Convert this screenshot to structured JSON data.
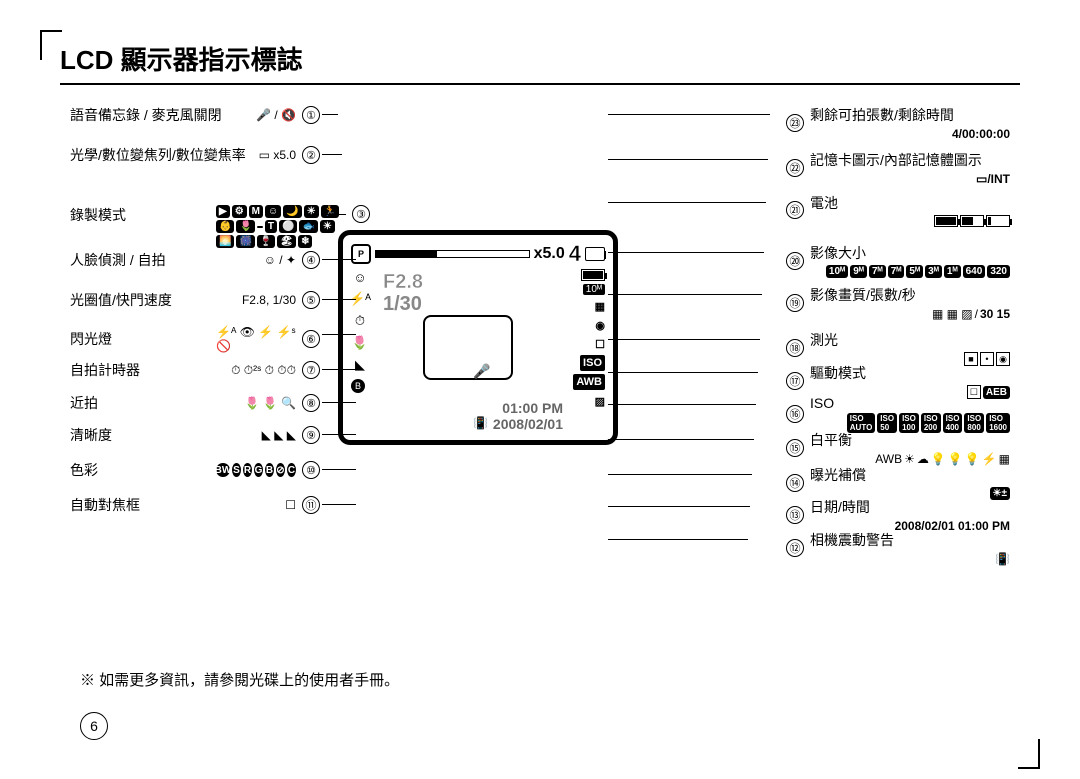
{
  "title": "LCD 顯示器指示標誌",
  "footnote": "※ 如需更多資訊，請參閱光碟上的使用者手冊。",
  "page_number": "6",
  "lcd": {
    "zoom": "x5.0",
    "count": "4",
    "aperture": "F2.8",
    "shutter": "1/30",
    "time": "01:00 PM",
    "date": "2008/02/01",
    "iso": "ISO",
    "awb": "AWB",
    "size": "10ᴹ"
  },
  "left": [
    {
      "n": "①",
      "label": "語音備忘錄 / 麥克風關閉",
      "icons": "🎤 / 🔇"
    },
    {
      "n": "②",
      "label": "光學/數位變焦列/數位變焦率",
      "icons": "▭ x5.0"
    },
    {
      "n": "③",
      "label": "錄製模式",
      "icons": "row_modes"
    },
    {
      "n": "④",
      "label": "人臉偵測 / 自拍",
      "icons": "☺ / ✦"
    },
    {
      "n": "⑤",
      "label": "光圈值/快門速度",
      "icons": "F2.8, 1/30"
    },
    {
      "n": "⑥",
      "label": "閃光燈",
      "icons": "⚡ᴬ 👁 ⚡ ⚡ˢ 🚫"
    },
    {
      "n": "⑦",
      "label": "自拍計時器",
      "icons": "⏱ ⏱²ˢ ⏱ ⏱⏱"
    },
    {
      "n": "⑧",
      "label": "近拍",
      "icons": "🌷 🌷 🔍"
    },
    {
      "n": "⑨",
      "label": "清晰度",
      "icons": "◣ ◣ ◣"
    },
    {
      "n": "⑩",
      "label": "色彩",
      "icons": "BW S R G B ⊘ C"
    },
    {
      "n": "⑪",
      "label": "自動對焦框",
      "icons": "☐"
    }
  ],
  "right": [
    {
      "n": "㉓",
      "label": "剩餘可拍張數/剩餘時間",
      "val": "4/00:00:00"
    },
    {
      "n": "㉒",
      "label": "記憶卡圖示/內部記憶體圖示",
      "val": "▭/INT"
    },
    {
      "n": "㉑",
      "label": "電池",
      "val": "batt"
    },
    {
      "n": "⑳",
      "label": "影像大小",
      "val": "sizes"
    },
    {
      "n": "⑲",
      "label": "影像畫質/張數/秒",
      "val": "quality"
    },
    {
      "n": "⑱",
      "label": "測光",
      "val": "meter"
    },
    {
      "n": "⑰",
      "label": "驅動模式",
      "val": "drive"
    },
    {
      "n": "⑯",
      "label": "ISO",
      "val": "iso"
    },
    {
      "n": "⑮",
      "label": "白平衡",
      "val": "wb"
    },
    {
      "n": "⑭",
      "label": "曝光補償",
      "val": "ev"
    },
    {
      "n": "⑬",
      "label": "日期/時間",
      "val": "2008/02/01 01:00 PM"
    },
    {
      "n": "⑫",
      "label": "相機震動警告",
      "val": "shake"
    }
  ],
  "mode_icons": [
    "▶",
    "⚙",
    "M",
    "☺",
    "🌙",
    "☀",
    "🏃",
    "👶",
    "🌷",
    "  ",
    "T",
    "⚪",
    "🐟",
    "☀",
    "🌅",
    "🎆",
    "🍷",
    "🏖",
    "❄"
  ],
  "size_badges": [
    "10ᴹ",
    "9ᴹ",
    "7ᴹ",
    "7ᴹ",
    "5ᴹ",
    "3ᴹ",
    "1ᴹ",
    "640",
    "320"
  ],
  "iso_vals": [
    "AUTO",
    "50",
    "100",
    "200",
    "400",
    "800",
    "1600"
  ],
  "wb_vals": [
    "AWB",
    "☀",
    "☁",
    "💡",
    "💡",
    "💡",
    "⚡",
    "▦"
  ]
}
